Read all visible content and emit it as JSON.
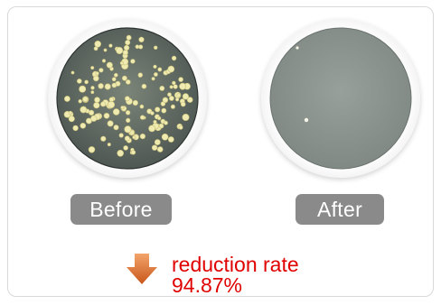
{
  "before": {
    "label": "Before",
    "colony_count_visual": "many"
  },
  "after": {
    "label": "After",
    "colony_count_visual": "few"
  },
  "result": {
    "title": "reduction rate",
    "value": "94.87%"
  },
  "colors": {
    "label_bg": "#8a8a8a",
    "rate_text": "#e00000",
    "arrow": "#d9671f"
  },
  "icons": {
    "down_arrow": "down-arrow-icon"
  }
}
